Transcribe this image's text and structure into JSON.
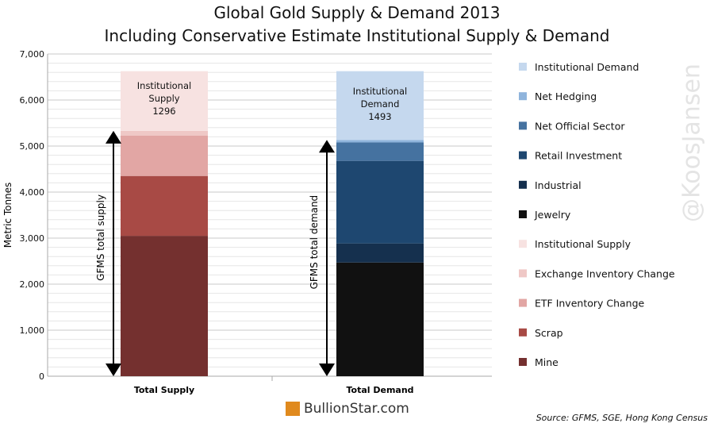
{
  "chart_data": {
    "type": "bar",
    "stacked": true,
    "title": "Global Gold Supply & Demand 2013",
    "subtitle": "Including Conservative Estimate Institutional Supply & Demand",
    "ylabel": "Metric Tonnes",
    "xlabel": "",
    "ylim": [
      0,
      7000
    ],
    "yticks": [
      "0",
      "1,000",
      "2,000",
      "3,000",
      "4,000",
      "5,000",
      "6,000",
      "7,000"
    ],
    "grid": true,
    "legend_position": "right",
    "categories": [
      "Total Supply",
      "Total Demand"
    ],
    "series": [
      {
        "name": "Mine",
        "category": "Total Supply",
        "value": 3050,
        "color": "#74302f"
      },
      {
        "name": "Scrap",
        "category": "Total Supply",
        "value": 1300,
        "color": "#a84a45"
      },
      {
        "name": "ETF Inventory Change",
        "category": "Total Supply",
        "value": 874,
        "color": "#e2a6a4"
      },
      {
        "name": "Exchange Inventory Change",
        "category": "Total Supply",
        "value": 106,
        "color": "#efc8c6"
      },
      {
        "name": "Institutional Supply",
        "category": "Total Supply",
        "value": 1296,
        "color": "#f7e2e1"
      },
      {
        "name": "Jewelry",
        "category": "Total Demand",
        "value": 2470,
        "color": "#111111"
      },
      {
        "name": "Industrial",
        "category": "Total Demand",
        "value": 415,
        "color": "#15304e"
      },
      {
        "name": "Retail Investment",
        "category": "Total Demand",
        "value": 1793,
        "color": "#1e4770"
      },
      {
        "name": "Net Official Sector",
        "category": "Total Demand",
        "value": 400,
        "color": "#4572a0"
      },
      {
        "name": "Net Hedging",
        "category": "Total Demand",
        "value": 55,
        "color": "#8fb4dc"
      },
      {
        "name": "Institutional Demand",
        "category": "Total Demand",
        "value": 1493,
        "color": "#c5d8ee"
      }
    ],
    "legend_order": [
      "Institutional Demand",
      "Net Hedging",
      "Net Official Sector",
      "Retail Investment",
      "Industrial",
      "Jewelry",
      "Institutional Supply",
      "Exchange Inventory Change",
      "ETF Inventory Change",
      "Scrap",
      "Mine"
    ],
    "annotations": {
      "supply_label": [
        "Institutional",
        "Supply",
        "1296"
      ],
      "demand_label": [
        "Institutional",
        "Demand",
        "1493"
      ],
      "supply_arrow": "GFMS total supply",
      "supply_arrow_top": 5330,
      "demand_arrow": "GFMS total demand",
      "demand_arrow_top": 5133
    }
  },
  "watermark": "@KoosJansen",
  "logo": "BullionStar.com",
  "source": "Source: GFMS, SGE, Hong Kong Census"
}
